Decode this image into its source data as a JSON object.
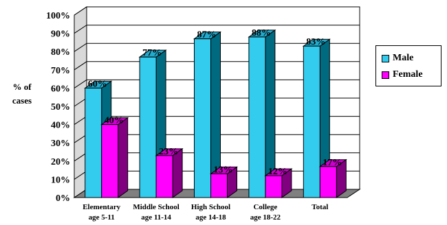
{
  "chart_data": {
    "type": "bar",
    "title": "",
    "ylabel": "% of cases",
    "ylabel_lines": [
      "% of",
      "cases"
    ],
    "ylim": [
      0,
      100
    ],
    "yticks": [
      "0%",
      "10%",
      "20%",
      "30%",
      "40%",
      "50%",
      "60%",
      "70%",
      "80%",
      "90%",
      "100%"
    ],
    "categories": [
      {
        "lines": [
          "Elementary",
          "age 5-11"
        ]
      },
      {
        "lines": [
          "Middle School",
          "age 11-14"
        ]
      },
      {
        "lines": [
          "High School",
          "age 14-18"
        ]
      },
      {
        "lines": [
          "College",
          "age 18-22"
        ]
      },
      {
        "lines": [
          "Total"
        ]
      }
    ],
    "series": [
      {
        "name": "Male",
        "values": [
          60,
          77,
          87,
          88,
          83
        ],
        "labels": [
          "60%",
          "77%",
          "87%",
          "88%",
          "83%"
        ],
        "color": "#33CCEE",
        "side_color": "#006A80",
        "top_color": "#22AACC"
      },
      {
        "name": "Female",
        "values": [
          40,
          23,
          13,
          12,
          17
        ],
        "labels": [
          "40%",
          "23%",
          "13%",
          "12%",
          "17%"
        ],
        "color": "#FF00FF",
        "side_color": "#800080",
        "top_color": "#CC00CC"
      }
    ],
    "grid": true,
    "legend_position": "right",
    "three_d": true
  }
}
